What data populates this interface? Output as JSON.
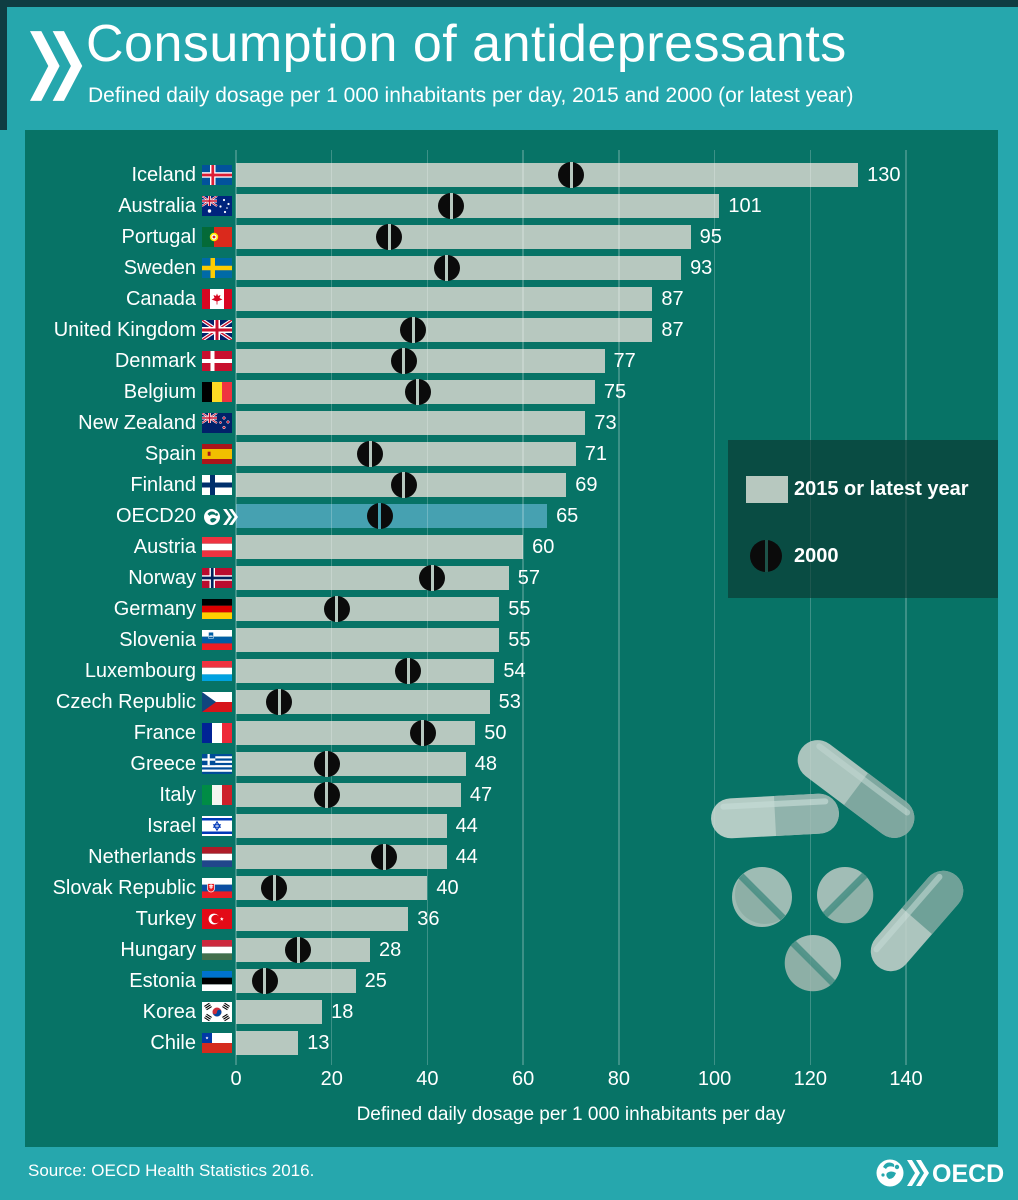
{
  "header": {
    "title": "Consumption of antidepressants",
    "subtitle": "Defined daily dosage per 1 000 inhabitants per day, 2015 and 2000 (or latest year)",
    "logo": "oecd-double-chevron"
  },
  "legend": {
    "items": [
      {
        "icon": "bar-swatch",
        "label": "2015 or latest year"
      },
      {
        "icon": "pill-marker",
        "label": "2000"
      }
    ]
  },
  "x_axis": {
    "label": "Defined daily dosage per 1 000 inhabitants per day",
    "ticks": [
      0,
      20,
      40,
      60,
      80,
      100,
      120,
      140
    ],
    "min": 0,
    "max": 140
  },
  "footer": {
    "source": "Source: OECD Health Statistics 2016.",
    "brand": "OECD"
  },
  "colors": {
    "page_teal": "#26a7ad",
    "panel_green": "#077366",
    "bar": "#b7c8bf",
    "bar_highlight": "#46a1b1",
    "marker_black": "#0b0b0b",
    "text_white": "#ffffff",
    "legend_bg": "rgba(12,52,45,0.62)",
    "gridline": "rgba(255,255,255,0.22)",
    "border_dark": "#0f3d42"
  },
  "chart_data": {
    "type": "bar",
    "orientation": "horizontal",
    "title": "Consumption of antidepressants",
    "xlabel": "Defined daily dosage per 1 000 inhabitants per day",
    "xlim": [
      0,
      140
    ],
    "grid": true,
    "legend_position": "center-right",
    "highlight_category": "OECD20",
    "categories": [
      "Iceland",
      "Australia",
      "Portugal",
      "Sweden",
      "Canada",
      "United Kingdom",
      "Denmark",
      "Belgium",
      "New Zealand",
      "Spain",
      "Finland",
      "OECD20",
      "Austria",
      "Norway",
      "Germany",
      "Slovenia",
      "Luxembourg",
      "Czech Republic",
      "France",
      "Greece",
      "Italy",
      "Israel",
      "Netherlands",
      "Slovak Republic",
      "Turkey",
      "Hungary",
      "Estonia",
      "Korea",
      "Chile"
    ],
    "flags": [
      "iceland",
      "australia",
      "portugal",
      "sweden",
      "canada",
      "uk",
      "denmark",
      "belgium",
      "new-zealand",
      "spain",
      "finland",
      "oecd",
      "austria",
      "norway",
      "germany",
      "slovenia",
      "luxembourg",
      "czech",
      "france",
      "greece",
      "italy",
      "israel",
      "netherlands",
      "slovakia",
      "turkey",
      "hungary",
      "estonia",
      "korea",
      "chile"
    ],
    "series": [
      {
        "name": "2015 or latest year",
        "values": [
          130,
          101,
          95,
          93,
          87,
          87,
          77,
          75,
          73,
          71,
          69,
          65,
          60,
          57,
          55,
          55,
          54,
          53,
          50,
          48,
          47,
          44,
          44,
          40,
          36,
          28,
          25,
          18,
          13
        ]
      },
      {
        "name": "2000",
        "values": [
          70,
          45,
          32,
          44,
          null,
          37,
          35,
          38,
          null,
          28,
          35,
          30,
          null,
          41,
          21,
          null,
          36,
          9,
          39,
          19,
          19,
          null,
          31,
          8,
          null,
          13,
          6,
          null,
          null
        ]
      }
    ]
  }
}
